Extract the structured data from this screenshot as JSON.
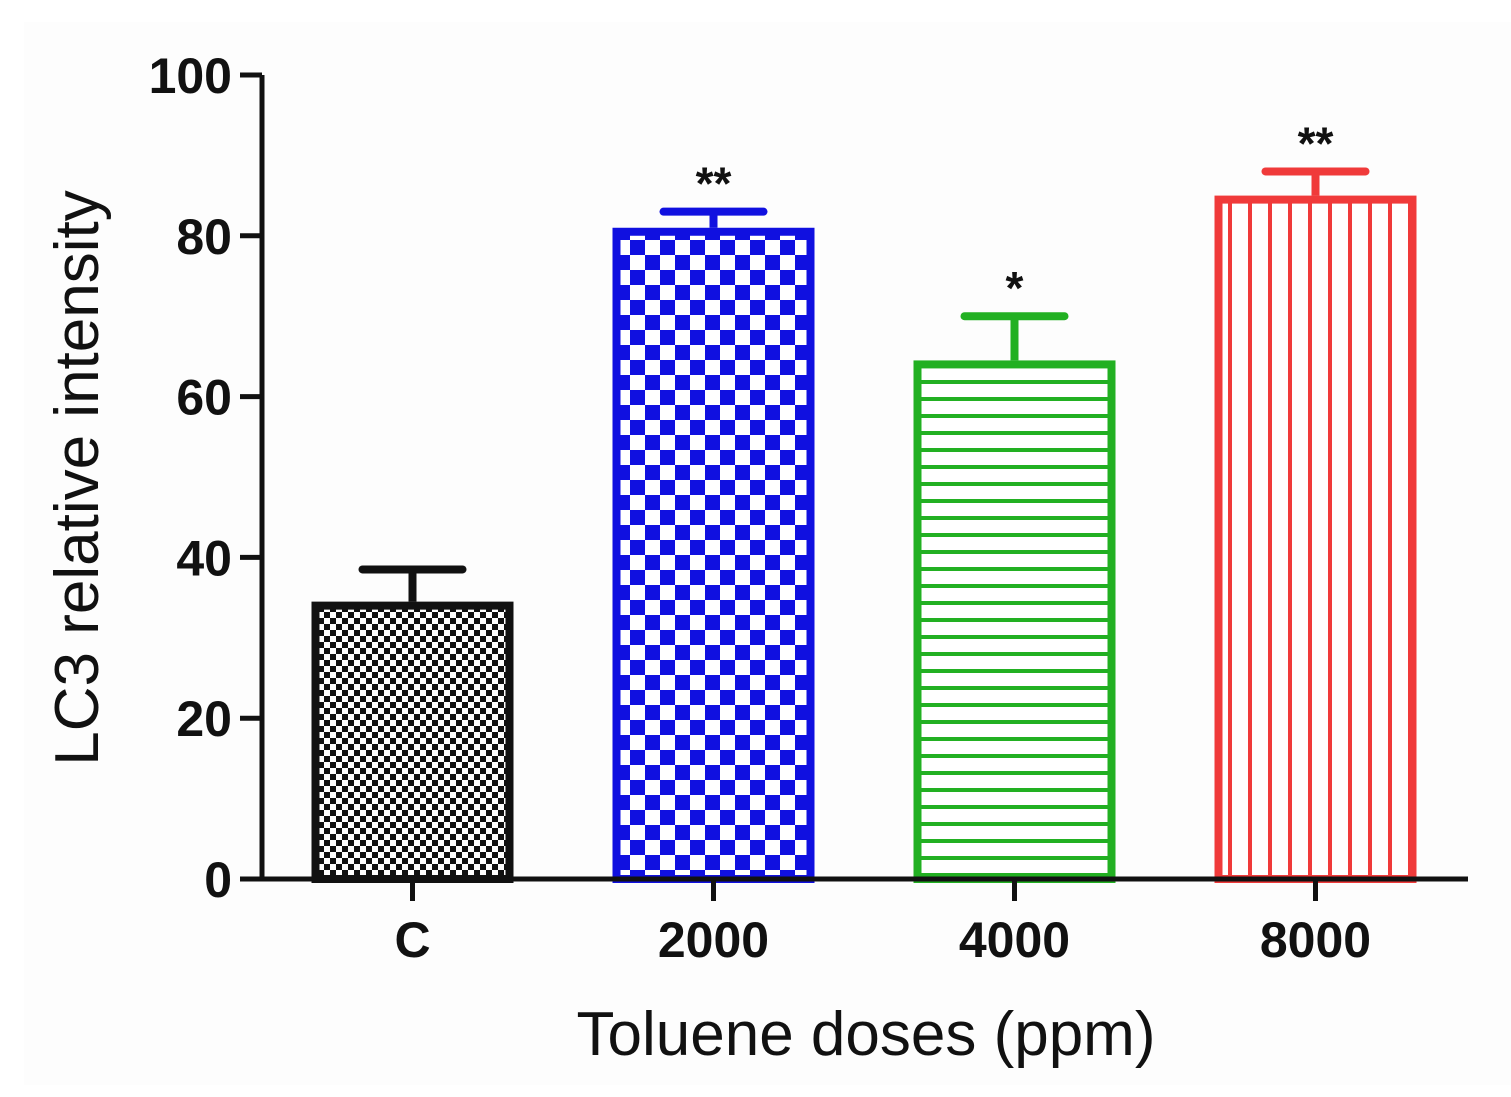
{
  "chart_data": {
    "type": "bar",
    "title": "",
    "xlabel": "Toluene doses (ppm)",
    "ylabel": "LC3 relative intensity",
    "ylim": [
      0,
      100
    ],
    "yticks": [
      "0",
      "20",
      "40",
      "60",
      "80",
      "100"
    ],
    "categories": [
      "C",
      "2000",
      "4000",
      "8000"
    ],
    "values": [
      34.5,
      81,
      64.5,
      85
    ],
    "errors": [
      4,
      2,
      5.5,
      3
    ],
    "significance": [
      "",
      "**",
      "*",
      "**"
    ],
    "colors": [
      "#111111",
      "#1010e0",
      "#22b022",
      "#f03a3a"
    ],
    "patterns": [
      "fine-checker",
      "checker",
      "horizontal-lines",
      "vertical-lines"
    ],
    "grid": false
  }
}
